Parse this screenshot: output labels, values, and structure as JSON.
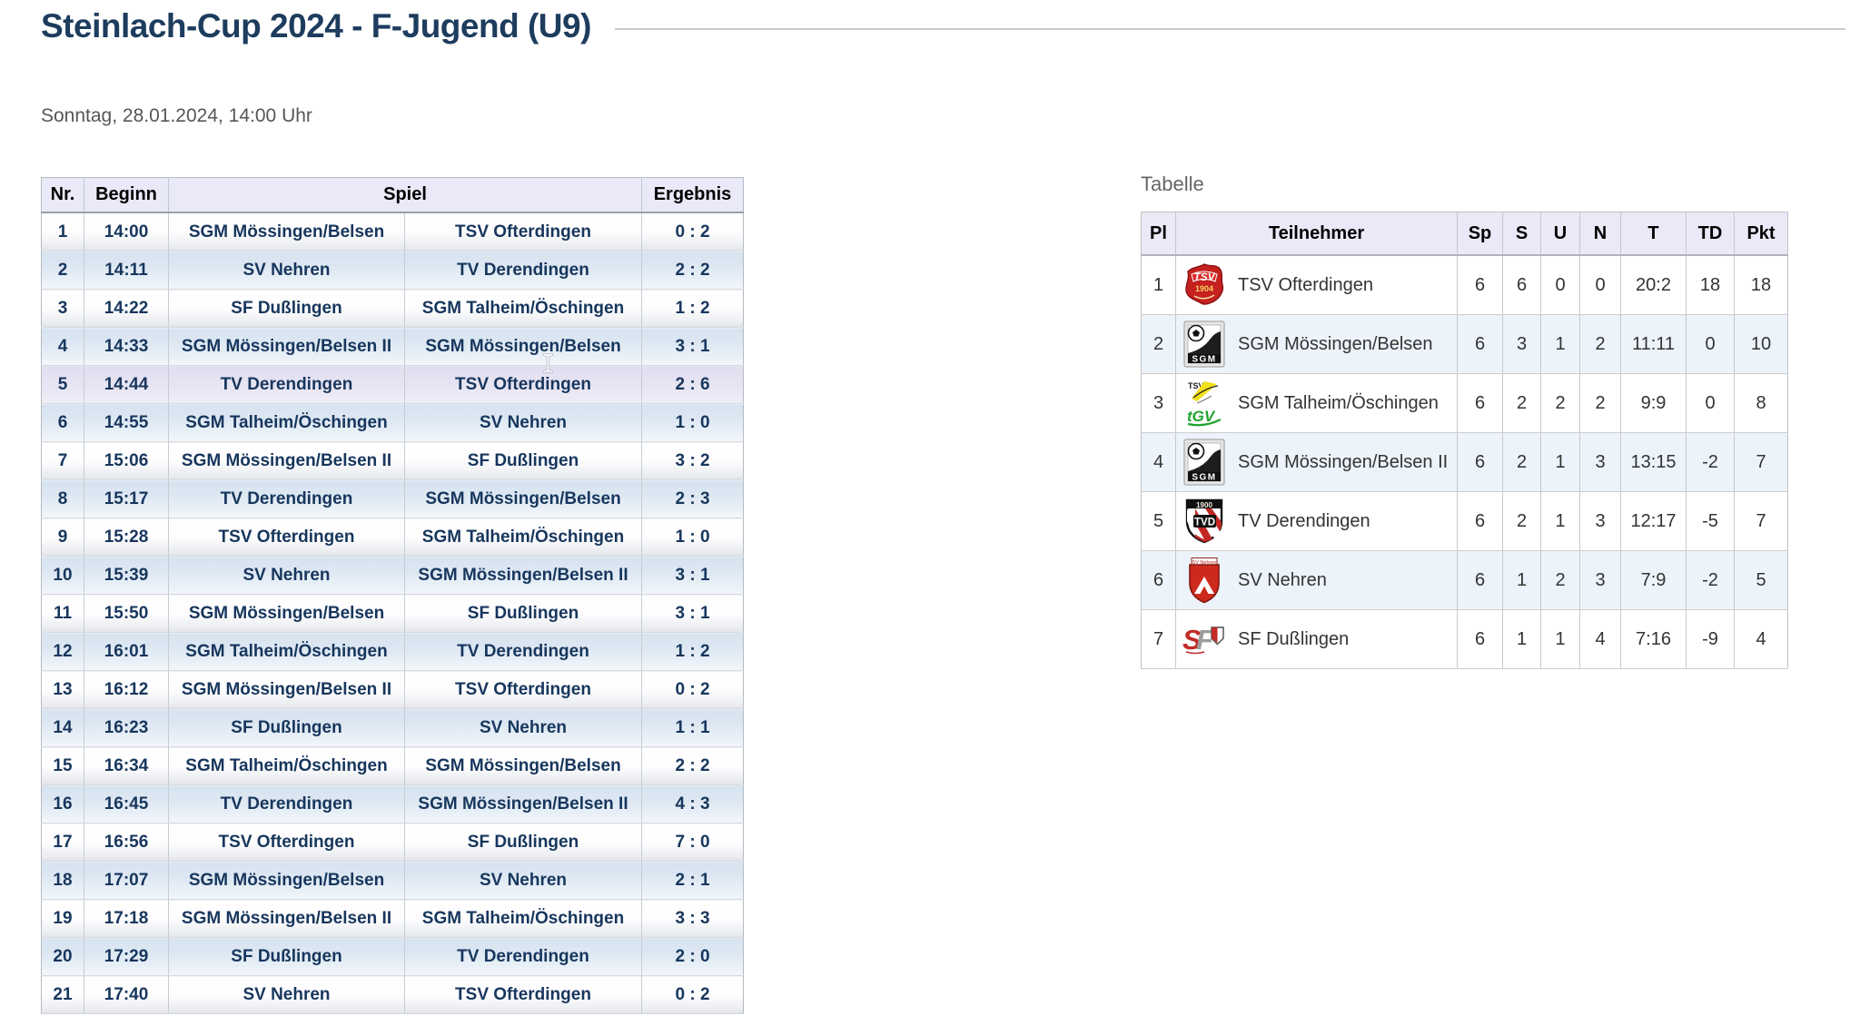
{
  "page": {
    "title": "Steinlach-Cup 2024 - F-Jugend (U9)",
    "subtitle": "Sonntag, 28.01.2024, 14:00 Uhr"
  },
  "colors": {
    "title_navy": "#1d3c5e",
    "table_navy": "#17365d",
    "header_lavender": "#e9e9f7",
    "row_blue": "#dce7f2",
    "row_hover_lavender": "#e6e3f2",
    "standings_row_blue": "#ecf3fa",
    "body_text": "#333333"
  },
  "schedule": {
    "headers": {
      "nr": "Nr.",
      "beginn": "Beginn",
      "spiel": "Spiel",
      "ergebnis": "Ergebnis"
    },
    "rows": [
      {
        "nr": "1",
        "time": "14:00",
        "home": "SGM Mössingen/Belsen",
        "away": "TSV Ofterdingen",
        "score": "0 : 2",
        "highlighted": false
      },
      {
        "nr": "2",
        "time": "14:11",
        "home": "SV Nehren",
        "away": "TV Derendingen",
        "score": "2 : 2",
        "highlighted": false
      },
      {
        "nr": "3",
        "time": "14:22",
        "home": "SF Dußlingen",
        "away": "SGM Talheim/Öschingen",
        "score": "1 : 2",
        "highlighted": false
      },
      {
        "nr": "4",
        "time": "14:33",
        "home": "SGM Mössingen/Belsen II",
        "away": "SGM Mössingen/Belsen",
        "score": "3 : 1",
        "highlighted": false
      },
      {
        "nr": "5",
        "time": "14:44",
        "home": "TV Derendingen",
        "away": "TSV Ofterdingen",
        "score": "2 : 6",
        "highlighted": true
      },
      {
        "nr": "6",
        "time": "14:55",
        "home": "SGM Talheim/Öschingen",
        "away": "SV Nehren",
        "score": "1 : 0",
        "highlighted": false
      },
      {
        "nr": "7",
        "time": "15:06",
        "home": "SGM Mössingen/Belsen II",
        "away": "SF Dußlingen",
        "score": "3 : 2",
        "highlighted": false
      },
      {
        "nr": "8",
        "time": "15:17",
        "home": "TV Derendingen",
        "away": "SGM Mössingen/Belsen",
        "score": "2 : 3",
        "highlighted": false
      },
      {
        "nr": "9",
        "time": "15:28",
        "home": "TSV Ofterdingen",
        "away": "SGM Talheim/Öschingen",
        "score": "1 : 0",
        "highlighted": false
      },
      {
        "nr": "10",
        "time": "15:39",
        "home": "SV Nehren",
        "away": "SGM Mössingen/Belsen II",
        "score": "3 : 1",
        "highlighted": false
      },
      {
        "nr": "11",
        "time": "15:50",
        "home": "SGM Mössingen/Belsen",
        "away": "SF Dußlingen",
        "score": "3 : 1",
        "highlighted": false
      },
      {
        "nr": "12",
        "time": "16:01",
        "home": "SGM Talheim/Öschingen",
        "away": "TV Derendingen",
        "score": "1 : 2",
        "highlighted": false
      },
      {
        "nr": "13",
        "time": "16:12",
        "home": "SGM Mössingen/Belsen II",
        "away": "TSV Ofterdingen",
        "score": "0 : 2",
        "highlighted": false
      },
      {
        "nr": "14",
        "time": "16:23",
        "home": "SF Dußlingen",
        "away": "SV Nehren",
        "score": "1 : 1",
        "highlighted": false
      },
      {
        "nr": "15",
        "time": "16:34",
        "home": "SGM Talheim/Öschingen",
        "away": "SGM Mössingen/Belsen",
        "score": "2 : 2",
        "highlighted": false
      },
      {
        "nr": "16",
        "time": "16:45",
        "home": "TV Derendingen",
        "away": "SGM Mössingen/Belsen II",
        "score": "4 : 3",
        "highlighted": false
      },
      {
        "nr": "17",
        "time": "16:56",
        "home": "TSV Ofterdingen",
        "away": "SF Dußlingen",
        "score": "7 : 0",
        "highlighted": false
      },
      {
        "nr": "18",
        "time": "17:07",
        "home": "SGM Mössingen/Belsen",
        "away": "SV Nehren",
        "score": "2 : 1",
        "highlighted": false
      },
      {
        "nr": "19",
        "time": "17:18",
        "home": "SGM Mössingen/Belsen II",
        "away": "SGM Talheim/Öschingen",
        "score": "3 : 3",
        "highlighted": false
      },
      {
        "nr": "20",
        "time": "17:29",
        "home": "SF Dußlingen",
        "away": "TV Derendingen",
        "score": "2 : 0",
        "highlighted": false
      },
      {
        "nr": "21",
        "time": "17:40",
        "home": "SV Nehren",
        "away": "TSV Ofterdingen",
        "score": "0 : 2",
        "highlighted": false
      }
    ]
  },
  "standings": {
    "title": "Tabelle",
    "headers": [
      "Pl",
      "Teilnehmer",
      "Sp",
      "S",
      "U",
      "N",
      "T",
      "TD",
      "Pkt"
    ],
    "rows": [
      {
        "pl": "1",
        "team": "TSV Ofterdingen",
        "logo_icon": "tsv-ofterdingen-crest-icon",
        "logo": "tsv",
        "sp": "6",
        "s": "6",
        "u": "0",
        "n": "0",
        "t": "20:2",
        "td": "18",
        "pkt": "18"
      },
      {
        "pl": "2",
        "team": "SGM Mössingen/Belsen",
        "logo_icon": "sgm-moessingen-crest-icon",
        "logo": "sgm",
        "sp": "6",
        "s": "3",
        "u": "1",
        "n": "2",
        "t": "11:11",
        "td": "0",
        "pkt": "10"
      },
      {
        "pl": "3",
        "team": "SGM Talheim/Öschingen",
        "logo_icon": "sgm-talheim-crest-icon",
        "logo": "talheim",
        "sp": "6",
        "s": "2",
        "u": "2",
        "n": "2",
        "t": "9:9",
        "td": "0",
        "pkt": "8"
      },
      {
        "pl": "4",
        "team": "SGM Mössingen/Belsen II",
        "logo_icon": "sgm-moessingen-crest-icon",
        "logo": "sgm",
        "sp": "6",
        "s": "2",
        "u": "1",
        "n": "3",
        "t": "13:15",
        "td": "-2",
        "pkt": "7"
      },
      {
        "pl": "5",
        "team": "TV Derendingen",
        "logo_icon": "tv-derendingen-crest-icon",
        "logo": "tvd",
        "sp": "6",
        "s": "2",
        "u": "1",
        "n": "3",
        "t": "12:17",
        "td": "-5",
        "pkt": "7"
      },
      {
        "pl": "6",
        "team": "SV Nehren",
        "logo_icon": "sv-nehren-crest-icon",
        "logo": "nehren",
        "sp": "6",
        "s": "1",
        "u": "2",
        "n": "3",
        "t": "7:9",
        "td": "-2",
        "pkt": "5"
      },
      {
        "pl": "7",
        "team": "SF Dußlingen",
        "logo_icon": "sf-dusslingen-crest-icon",
        "logo": "sf",
        "sp": "6",
        "s": "1",
        "u": "1",
        "n": "4",
        "t": "7:16",
        "td": "-9",
        "pkt": "4"
      }
    ]
  }
}
